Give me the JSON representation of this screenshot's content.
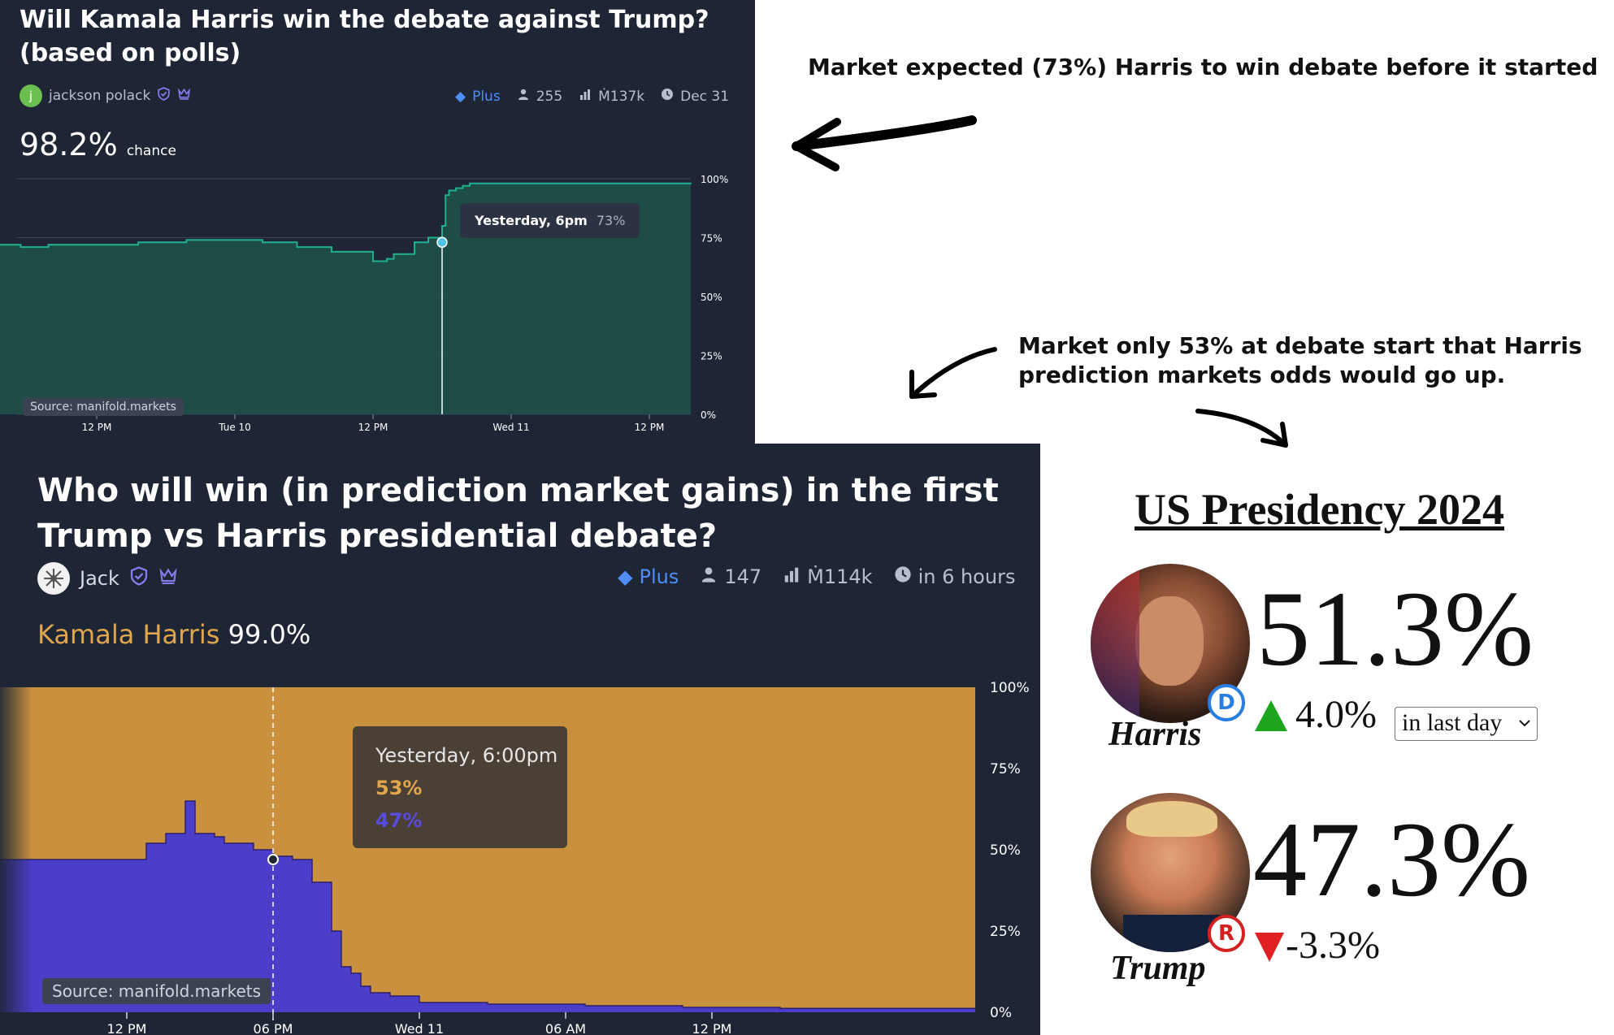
{
  "top_market": {
    "title": "Will Kamala Harris win the debate against Trump? (based on polls)",
    "avatar_letter": "j",
    "creator": "jackson polack",
    "plus_label": "Plus",
    "traders": "255",
    "volume": "Ṁ137k",
    "close_date": "Dec 31",
    "probability": "98.2%",
    "probability_suffix": "chance",
    "tooltip_time": "Yesterday, 6pm",
    "tooltip_value": "73%",
    "source": "Source: manifold.markets",
    "accent_color": "#1f4f49",
    "line_color": "#21b08e"
  },
  "bottom_market": {
    "title": "Who will win (in prediction market gains) in the first Trump vs Harris presidential debate?",
    "creator": "Jack",
    "plus_label": "Plus",
    "traders": "147",
    "volume": "Ṁ114k",
    "close_time": "in 6 hours",
    "leader_name": "Kamala Harris",
    "leader_prob": "99.0%",
    "tooltip_time": "Yesterday, 6:00pm",
    "tooltip_harris": "53%",
    "tooltip_trump": "47%",
    "source": "Source: manifold.markets",
    "harris_color": "#c9913e",
    "trump_color": "#4b3ec9"
  },
  "annotations": {
    "note1": "Market expected (73%) Harris to win debate before it started",
    "note2_line1": "Market only 53% at debate start that Harris",
    "note2_line2": "prediction markets odds would go up."
  },
  "presidency": {
    "title": "US Presidency 2024",
    "harris_name": "Harris",
    "harris_pct": "51.3%",
    "harris_change": "4.0%",
    "period_select": "in last day",
    "trump_name": "Trump",
    "trump_pct": "47.3%",
    "trump_change": "-3.3%",
    "dem_badge": "D",
    "rep_badge": "R",
    "up_color": "#1ea51e",
    "down_color": "#e02020"
  },
  "chart_data": [
    {
      "type": "area",
      "title": "Will Kamala Harris win the debate against Trump? (based on polls)",
      "x_ticks": [
        "12 PM",
        "Tue 10",
        "12 PM",
        "Wed 11",
        "12 PM"
      ],
      "y_ticks": [
        "100%",
        "75%",
        "50%",
        "25%",
        "0%"
      ],
      "ylim": [
        0,
        100
      ],
      "grid": true,
      "series": [
        {
          "x": [
            0,
            0.03,
            0.07,
            0.2,
            0.27,
            0.38,
            0.43,
            0.48,
            0.54,
            0.56,
            0.57,
            0.6,
            0.62,
            0.64,
            0.645,
            0.65,
            0.66,
            0.67,
            0.68,
            0.7,
            0.8,
            0.9,
            1.0
          ],
          "y": [
            72,
            71,
            72,
            73,
            74,
            73,
            71,
            69,
            65,
            66,
            68,
            73,
            75,
            80,
            93,
            95,
            96,
            97,
            98,
            98,
            98,
            98,
            98.2
          ]
        }
      ]
    },
    {
      "type": "area",
      "title": "Who will win (in prediction market gains) in the first Trump vs Harris presidential debate?",
      "x_ticks": [
        "12 PM",
        "06 PM",
        "Wed 11",
        "06 AM",
        "12 PM"
      ],
      "y_ticks": [
        "100%",
        "75%",
        "50%",
        "25%",
        "0%"
      ],
      "ylim": [
        0,
        100
      ],
      "grid": false,
      "series": [
        {
          "name": "Kamala Harris",
          "note": "fills area above Trump series up to 100%"
        },
        {
          "name": "Trump",
          "x": [
            0,
            0.14,
            0.15,
            0.17,
            0.19,
            0.2,
            0.22,
            0.23,
            0.26,
            0.28,
            0.3,
            0.32,
            0.34,
            0.35,
            0.36,
            0.37,
            0.38,
            0.4,
            0.43,
            0.5,
            0.6,
            0.7,
            0.8,
            1.0
          ],
          "y": [
            47,
            47,
            52,
            55,
            65,
            55,
            54,
            52,
            50,
            48,
            47,
            40,
            25,
            14,
            12,
            8,
            6,
            5,
            3,
            2.5,
            2,
            1.5,
            1.2,
            1.0
          ]
        }
      ]
    }
  ]
}
